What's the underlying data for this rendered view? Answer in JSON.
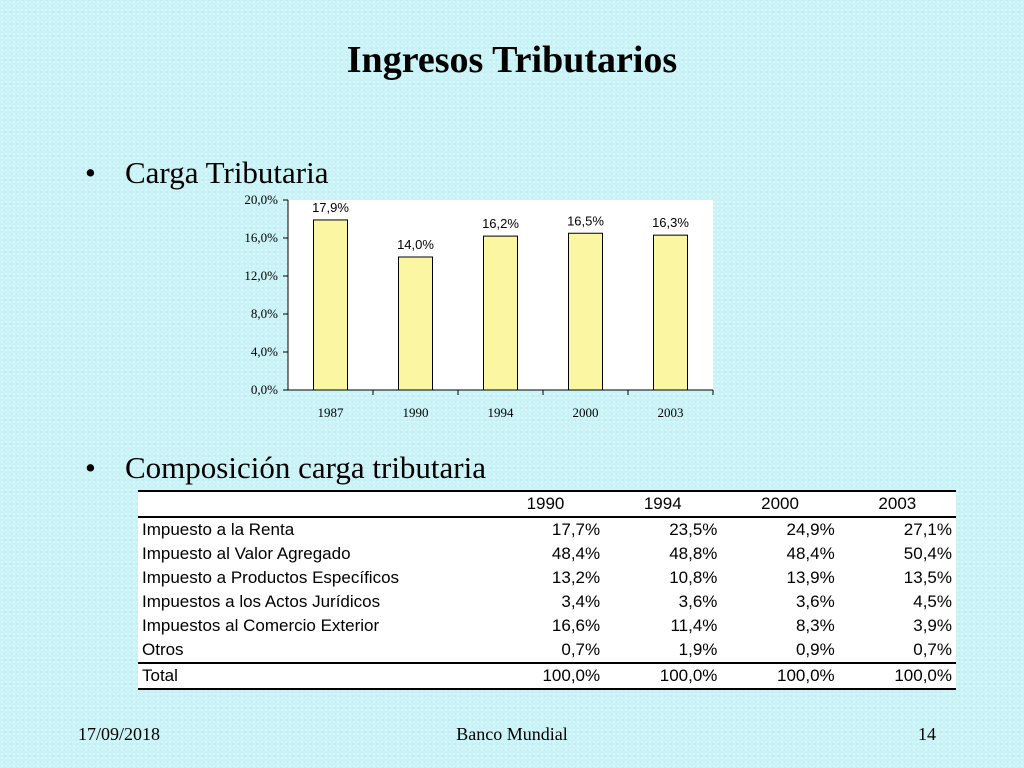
{
  "slide": {
    "title": "Ingresos Tributarios",
    "bullet1": "Carga Tributaria",
    "bullet2": "Composición carga tributaria",
    "bullet_symbol": "•"
  },
  "chart_data": {
    "type": "bar",
    "categories": [
      "1987",
      "1990",
      "1994",
      "2000",
      "2003"
    ],
    "values": [
      17.9,
      14.0,
      16.2,
      16.5,
      16.3
    ],
    "data_labels": [
      "17,9%",
      "14,0%",
      "16,2%",
      "16,5%",
      "16,3%"
    ],
    "y_ticks": [
      "0,0%",
      "4,0%",
      "8,0%",
      "12,0%",
      "16,0%",
      "20,0%"
    ],
    "ylim": [
      0,
      20
    ],
    "title": "",
    "xlabel": "",
    "ylabel": "",
    "bar_color": "#faf6a2",
    "grid": false
  },
  "table": {
    "headers": [
      "",
      "1990",
      "1994",
      "2000",
      "2003"
    ],
    "rows": [
      {
        "label": "Impuesto a la Renta",
        "values": [
          "17,7%",
          "23,5%",
          "24,9%",
          "27,1%"
        ]
      },
      {
        "label": "Impuesto al Valor Agregado",
        "values": [
          "48,4%",
          "48,8%",
          "48,4%",
          "50,4%"
        ]
      },
      {
        "label": "Impuesto a Productos Específicos",
        "values": [
          "13,2%",
          "10,8%",
          "13,9%",
          "13,5%"
        ]
      },
      {
        "label": "Impuestos a los Actos Jurídicos",
        "values": [
          "3,4%",
          "3,6%",
          "3,6%",
          "4,5%"
        ]
      },
      {
        "label": "Impuestos al Comercio Exterior",
        "values": [
          "16,6%",
          "11,4%",
          "8,3%",
          "3,9%"
        ]
      },
      {
        "label": "Otros",
        "values": [
          "0,7%",
          "1,9%",
          "0,9%",
          "0,7%"
        ]
      }
    ],
    "total": {
      "label": "Total",
      "values": [
        "100,0%",
        "100,0%",
        "100,0%",
        "100,0%"
      ]
    }
  },
  "footer": {
    "date": "17/09/2018",
    "center": "Banco Mundial",
    "page": "14"
  }
}
